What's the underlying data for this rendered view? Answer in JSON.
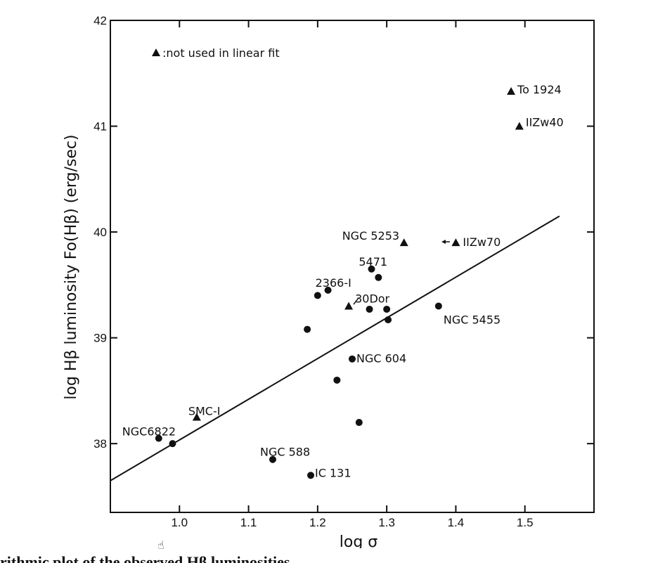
{
  "chart_data": {
    "type": "scatter",
    "title": "",
    "xlabel": "log σ",
    "ylabel": "log Hβ luminosity Fo(Hβ) (erg/sec)",
    "xlim": [
      0.9,
      1.6
    ],
    "ylim": [
      37.35,
      42
    ],
    "xticks": [
      1.0,
      1.1,
      1.2,
      1.3,
      1.4,
      1.5
    ],
    "xtick_labels": [
      "1.0",
      "1.1",
      "1.2",
      "1.3",
      "1.4",
      "1.5"
    ],
    "yticks": [
      38,
      39,
      40,
      41,
      42
    ],
    "ytick_labels": [
      "38",
      "39",
      "40",
      "41",
      "42"
    ],
    "legend": {
      "placement": "top-left",
      "text": ":not used in linear fit",
      "marker": "triangle"
    },
    "fit_line": {
      "x": [
        0.9,
        1.55
      ],
      "y": [
        37.65,
        40.15
      ]
    },
    "series": [
      {
        "marker": "circle",
        "points": [
          {
            "x": 0.97,
            "y": 38.05,
            "label": "NGC6822"
          },
          {
            "x": 0.99,
            "y": 38.0,
            "label": ""
          },
          {
            "x": 1.135,
            "y": 37.85,
            "label": "NGC 588"
          },
          {
            "x": 1.19,
            "y": 37.7,
            "label": "IC 131"
          },
          {
            "x": 1.185,
            "y": 39.08,
            "label": ""
          },
          {
            "x": 1.2,
            "y": 39.4,
            "label": ""
          },
          {
            "x": 1.215,
            "y": 39.45,
            "label": "2366-I"
          },
          {
            "x": 1.228,
            "y": 38.6,
            "label": ""
          },
          {
            "x": 1.26,
            "y": 38.2,
            "label": ""
          },
          {
            "x": 1.25,
            "y": 38.8,
            "label": "NGC 604"
          },
          {
            "x": 1.275,
            "y": 39.27,
            "label": ""
          },
          {
            "x": 1.278,
            "y": 39.65,
            "label": ""
          },
          {
            "x": 1.288,
            "y": 39.57,
            "label": "5471"
          },
          {
            "x": 1.3,
            "y": 39.27,
            "label": ""
          },
          {
            "x": 1.302,
            "y": 39.17,
            "label": ""
          },
          {
            "x": 1.375,
            "y": 39.3,
            "label": "NGC 5455"
          }
        ]
      },
      {
        "marker": "triangle",
        "points": [
          {
            "x": 1.025,
            "y": 38.25,
            "label": "SMC-I"
          },
          {
            "x": 1.245,
            "y": 39.3,
            "label": "30Dor"
          },
          {
            "x": 1.325,
            "y": 39.9,
            "label": "NGC 5253"
          },
          {
            "x": 1.4,
            "y": 39.9,
            "label": "IIZw70"
          },
          {
            "x": 1.48,
            "y": 41.33,
            "label": "To 1924"
          },
          {
            "x": 1.492,
            "y": 41.0,
            "label": "IIZw40"
          }
        ]
      }
    ]
  },
  "caption": "rithmic plot of the observed Hβ luminosities",
  "cursor_icon": "hand-cursor-icon"
}
